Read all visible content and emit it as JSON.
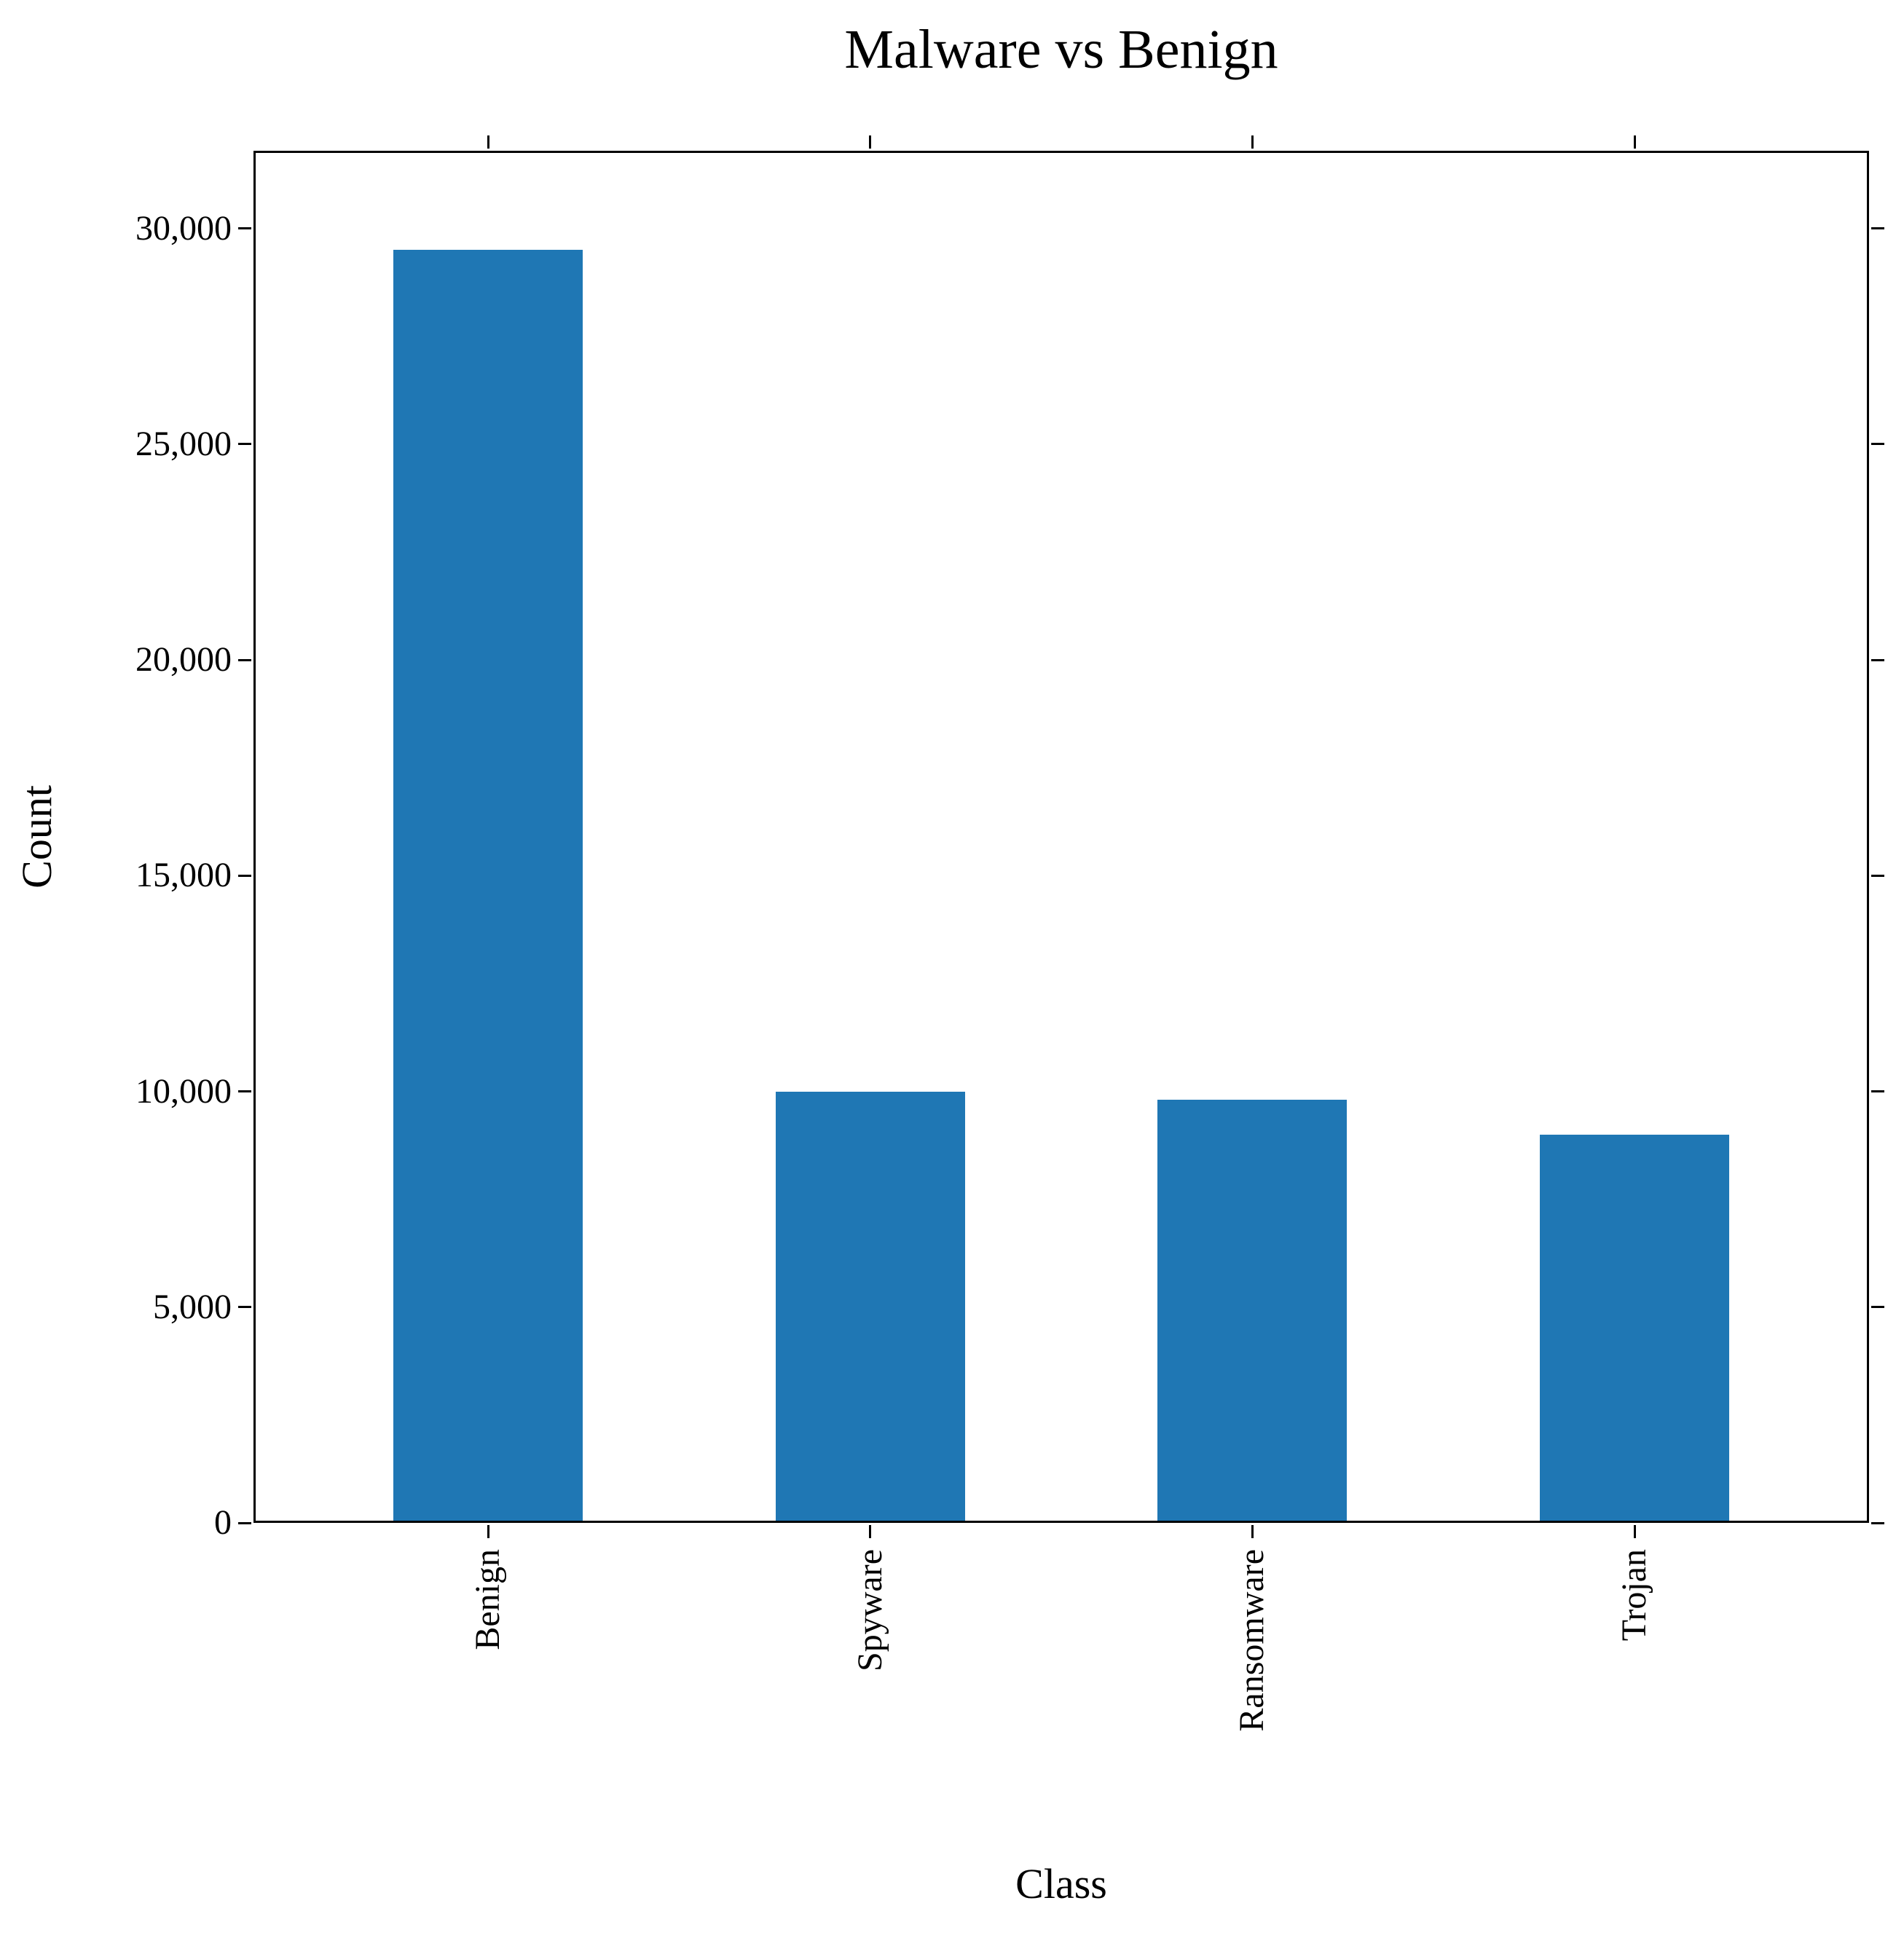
{
  "figure": {
    "background": "#ffffff"
  },
  "chart_data": {
    "type": "bar",
    "title": "Malware vs Benign",
    "xlabel": "Class",
    "ylabel": "Count",
    "categories": [
      "Benign",
      "Spyware",
      "Ransomware",
      "Trojan"
    ],
    "values": [
      29500,
      10000,
      9800,
      9000
    ],
    "bar_color": "#1f77b4",
    "ylim": [
      0,
      31800
    ],
    "yticks": {
      "values": [
        0,
        5000,
        10000,
        15000,
        20000,
        25000,
        30000
      ],
      "labels": [
        "0",
        "5,000",
        "10,000",
        "15,000",
        "20,000",
        "25,000",
        "30,000"
      ]
    },
    "grid": false,
    "legend": null,
    "x_tick_label_rotation_deg": 90,
    "ticks_on_all_sides": true
  }
}
